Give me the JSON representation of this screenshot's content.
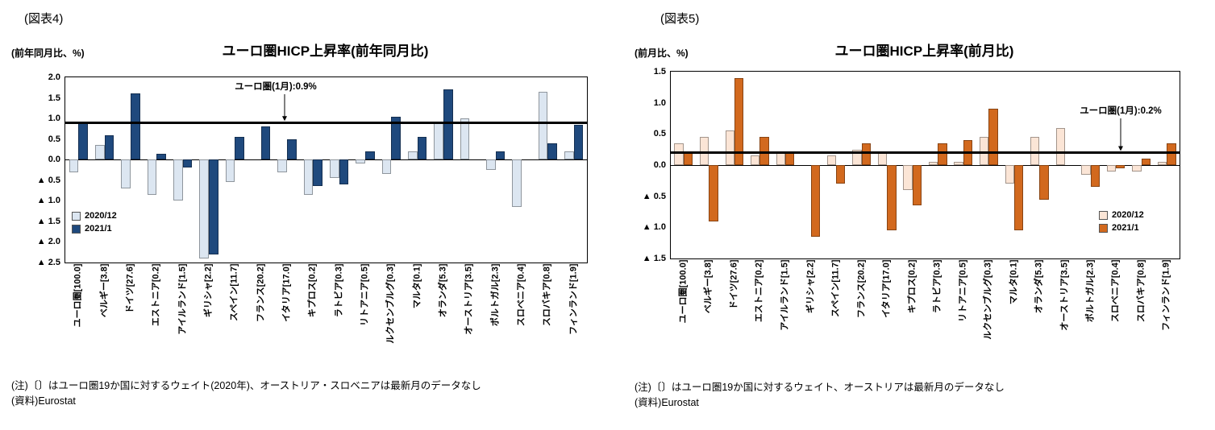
{
  "page": {
    "background": "#ffffff"
  },
  "chart_data": [
    {
      "type": "bar",
      "figure_label": "(図表4)",
      "title": "ユーロ圏HICP上昇率(前年同月比)",
      "y_unit_label": "(前年同月比、%)",
      "annotation": "ユーロ圏(1月):0.9%",
      "ref_line": 0.9,
      "ylim": [
        -2.5,
        2.0
      ],
      "ytick_values": [
        2.0,
        1.5,
        1.0,
        0.5,
        0.0,
        -0.5,
        -1.0,
        -1.5,
        -2.0,
        -2.5
      ],
      "ytick_labels": [
        "2.0",
        "1.5",
        "1.0",
        "0.5",
        "0.0",
        "▲ 0.5",
        "▲ 1.0",
        "▲ 1.5",
        "▲ 2.0",
        "▲ 2.5"
      ],
      "grid": false,
      "legend_position": "inside-bottom-left",
      "categories": [
        "ユーロ圏[100.0]",
        "ベルギー[3.8]",
        "ドイツ[27.6]",
        "エストニア[0.2]",
        "アイルランド[1.5]",
        "ギリシャ[2.2]",
        "スペイン[11.7]",
        "フランス[20.2]",
        "イタリア[17.0]",
        "キプロス[0.2]",
        "ラトビア[0.3]",
        "リトアニア[0.5]",
        "ルクセンブルグ[0.3]",
        "マルタ[0.1]",
        "オランダ[5.3]",
        "オーストリア[3.5]",
        "ポルトガル[2.3]",
        "スロベニア[0.4]",
        "スロバキア[0.8]",
        "フィンランド[1.9]"
      ],
      "series": [
        {
          "name": "2020/12",
          "color": "#dce6f1",
          "values": [
            -0.3,
            0.35,
            -0.7,
            -0.85,
            -1.0,
            -2.4,
            -0.55,
            0.0,
            -0.3,
            -0.85,
            -0.45,
            -0.1,
            -0.35,
            0.2,
            0.9,
            1.0,
            -0.25,
            -1.15,
            1.65,
            0.2
          ]
        },
        {
          "name": "2021/1",
          "color": "#1f497d",
          "values": [
            0.9,
            0.6,
            1.6,
            0.15,
            -0.2,
            -2.3,
            0.55,
            0.8,
            0.5,
            -0.65,
            -0.6,
            0.2,
            1.05,
            0.55,
            1.7,
            null,
            0.2,
            null,
            0.4,
            0.85
          ]
        }
      ],
      "notes": [
        "(注)〔〕はユーロ圏19か国に対するウェイト(2020年)、オーストリア・スロベニアは最新月のデータなし",
        "(資料)Eurostat"
      ]
    },
    {
      "type": "bar",
      "figure_label": "(図表5)",
      "title": "ユーロ圏HICP上昇率(前月比)",
      "y_unit_label": "(前月比、%)",
      "annotation": "ユーロ圏(1月):0.2%",
      "ref_line": 0.2,
      "ylim": [
        -1.5,
        1.5
      ],
      "ytick_values": [
        1.5,
        1.0,
        0.5,
        0.0,
        -0.5,
        -1.0,
        -1.5
      ],
      "ytick_labels": [
        "1.5",
        "1.0",
        "0.5",
        "0.0",
        "▲ 0.5",
        "▲ 1.0",
        "▲ 1.5"
      ],
      "grid": false,
      "legend_position": "inside-right",
      "categories": [
        "ユーロ圏[100.0]",
        "ベルギー[3.8]",
        "ドイツ[27.6]",
        "エストニア[0.2]",
        "アイルランド[1.5]",
        "ギリシャ[2.2]",
        "スペイン[11.7]",
        "フランス[20.2]",
        "イタリア[17.0]",
        "キプロス[0.2]",
        "ラトビア[0.3]",
        "リトアニア[0.5]",
        "ルクセンブルグ[0.3]",
        "マルタ[0.1]",
        "オランダ[5.3]",
        "オーストリア[3.5]",
        "ポルトガル[2.3]",
        "スロベニア[0.4]",
        "スロバキア[0.8]",
        "フィンランド[1.9]"
      ],
      "series": [
        {
          "name": "2020/12",
          "color": "#fbe5d6",
          "values": [
            0.35,
            0.45,
            0.55,
            0.15,
            0.2,
            0.0,
            0.15,
            0.25,
            0.2,
            -0.4,
            0.05,
            0.05,
            0.45,
            -0.3,
            0.45,
            0.6,
            -0.15,
            -0.1,
            -0.1,
            0.05
          ]
        },
        {
          "name": "2021/1",
          "color": "#d2691e",
          "values": [
            0.2,
            -0.9,
            1.4,
            0.45,
            0.2,
            -1.15,
            -0.3,
            0.35,
            -1.05,
            -0.65,
            0.35,
            0.4,
            0.9,
            -1.05,
            -0.55,
            null,
            -0.35,
            -0.05,
            0.1,
            0.35
          ]
        }
      ],
      "notes": [
        "(注)〔〕はユーロ圏19か国に対するウェイト、オーストリアは最新月のデータなし",
        "(資料)Eurostat"
      ]
    }
  ]
}
